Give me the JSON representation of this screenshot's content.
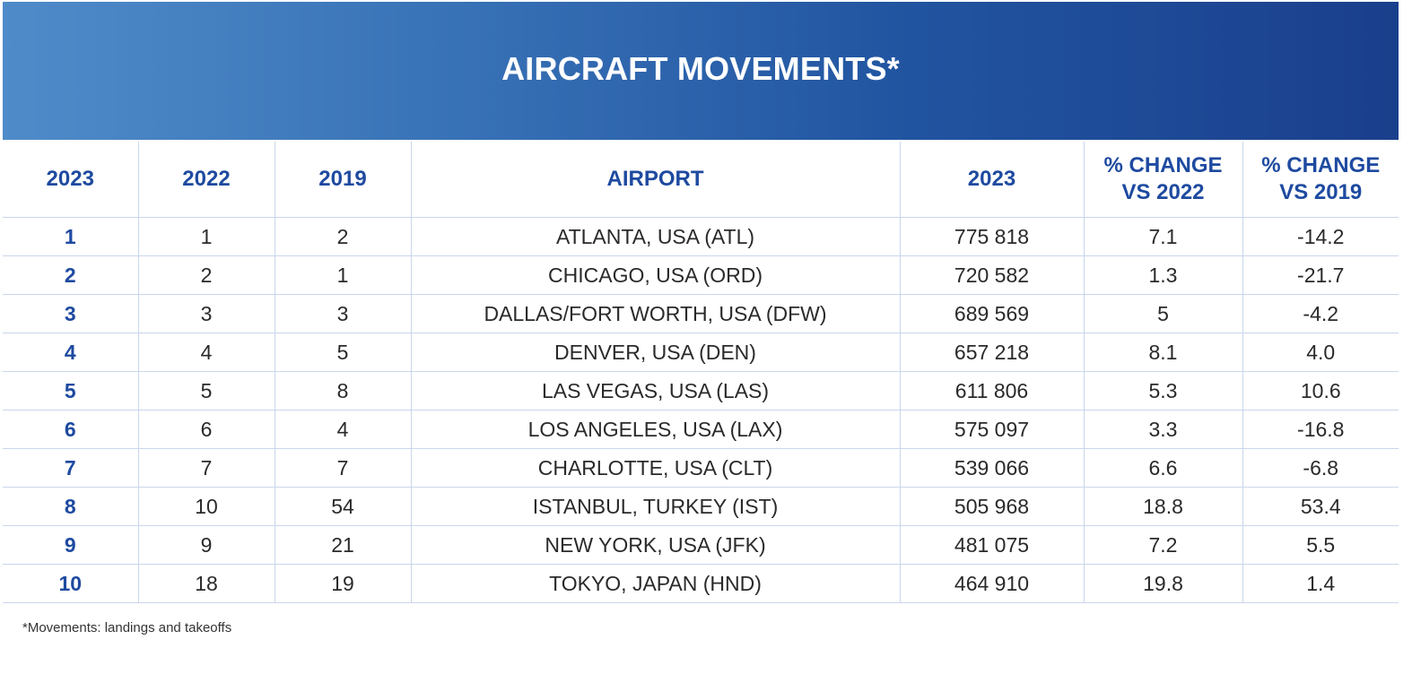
{
  "title": "AIRCRAFT MOVEMENTS*",
  "headers": {
    "rank2023": "2023",
    "rank2022": "2022",
    "rank2019": "2019",
    "airport": "AIRPORT",
    "movements2023": "2023",
    "change_vs_2022_line1": "% CHANGE",
    "change_vs_2022_line2": "VS 2022",
    "change_vs_2019_line1": "% CHANGE",
    "change_vs_2019_line2": "VS 2019"
  },
  "footnote": "*Movements: landings and takeoffs",
  "colors": {
    "banner_light": "#4f8bc9",
    "banner_dark": "#1a3f8c",
    "header_text": "#1e4aa0",
    "grid_line": "#c9d6ec"
  },
  "chart_data": {
    "type": "table",
    "title": "AIRCRAFT MOVEMENTS*",
    "columns": [
      "2023",
      "2022",
      "2019",
      "AIRPORT",
      "2023",
      "% CHANGE VS 2022",
      "% CHANGE VS 2019"
    ],
    "rows": [
      {
        "rank2023": "1",
        "rank2022": "1",
        "rank2019": "2",
        "airport": "ATLANTA, USA (ATL)",
        "movements": "775 818",
        "chg2022": "7.1",
        "chg2019": "-14.2"
      },
      {
        "rank2023": "2",
        "rank2022": "2",
        "rank2019": "1",
        "airport": "CHICAGO, USA (ORD)",
        "movements": "720 582",
        "chg2022": "1.3",
        "chg2019": "-21.7"
      },
      {
        "rank2023": "3",
        "rank2022": "3",
        "rank2019": "3",
        "airport": "DALLAS/FORT WORTH, USA (DFW)",
        "movements": "689 569",
        "chg2022": "5",
        "chg2019": "-4.2"
      },
      {
        "rank2023": "4",
        "rank2022": "4",
        "rank2019": "5",
        "airport": "DENVER, USA (DEN)",
        "movements": "657 218",
        "chg2022": "8.1",
        "chg2019": "4.0"
      },
      {
        "rank2023": "5",
        "rank2022": "5",
        "rank2019": "8",
        "airport": "LAS VEGAS, USA (LAS)",
        "movements": "611 806",
        "chg2022": "5.3",
        "chg2019": "10.6"
      },
      {
        "rank2023": "6",
        "rank2022": "6",
        "rank2019": "4",
        "airport": "LOS ANGELES, USA (LAX)",
        "movements": "575 097",
        "chg2022": "3.3",
        "chg2019": "-16.8"
      },
      {
        "rank2023": "7",
        "rank2022": "7",
        "rank2019": "7",
        "airport": "CHARLOTTE, USA (CLT)",
        "movements": "539 066",
        "chg2022": "6.6",
        "chg2019": "-6.8"
      },
      {
        "rank2023": "8",
        "rank2022": "10",
        "rank2019": "54",
        "airport": "ISTANBUL, TURKEY (IST)",
        "movements": "505 968",
        "chg2022": "18.8",
        "chg2019": "53.4"
      },
      {
        "rank2023": "9",
        "rank2022": "9",
        "rank2019": "21",
        "airport": "NEW YORK, USA (JFK)",
        "movements": "481 075",
        "chg2022": "7.2",
        "chg2019": "5.5"
      },
      {
        "rank2023": "10",
        "rank2022": "18",
        "rank2019": "19",
        "airport": "TOKYO, JAPAN (HND)",
        "movements": "464 910",
        "chg2022": "19.8",
        "chg2019": "1.4"
      }
    ]
  }
}
